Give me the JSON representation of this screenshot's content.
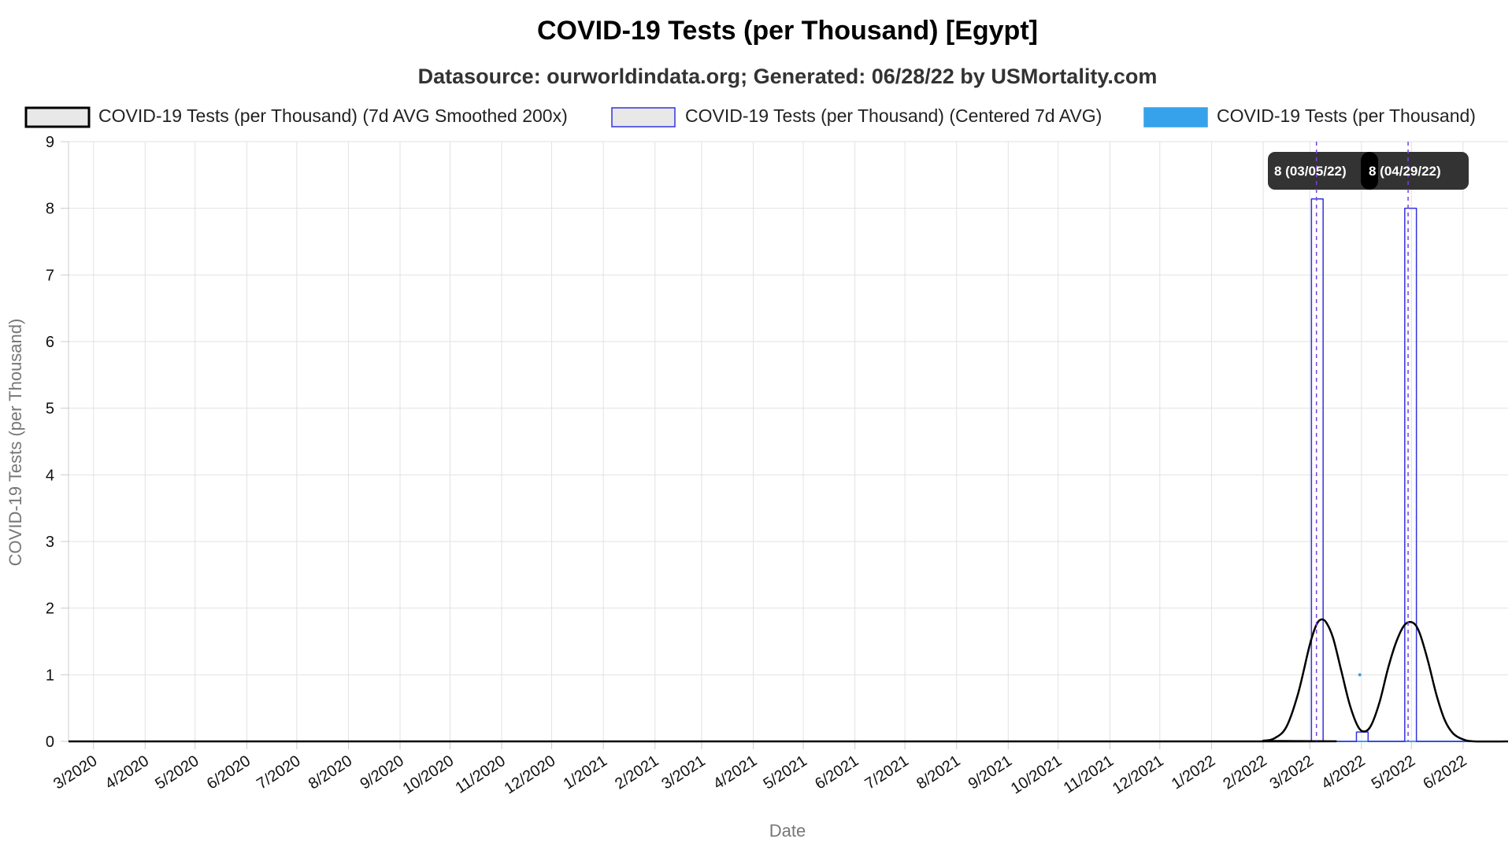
{
  "chart_data": {
    "type": "line",
    "title": "COVID-19 Tests (per Thousand) [Egypt]",
    "subtitle": "Datasource: ourworldindata.org; Generated: 06/28/22 by USMortality.com",
    "xlabel": "Date",
    "ylabel": "COVID-19 Tests (per Thousand)",
    "ylim": [
      0,
      9
    ],
    "yticks": [
      "0",
      "1",
      "2",
      "3",
      "4",
      "5",
      "6",
      "7",
      "8",
      "9"
    ],
    "xlim": [
      "2020-02-15",
      "2022-06-28"
    ],
    "xticks": [
      {
        "label": "3/2020",
        "date": "2020-03-01"
      },
      {
        "label": "4/2020",
        "date": "2020-04-01"
      },
      {
        "label": "5/2020",
        "date": "2020-05-01"
      },
      {
        "label": "6/2020",
        "date": "2020-06-01"
      },
      {
        "label": "7/2020",
        "date": "2020-07-01"
      },
      {
        "label": "8/2020",
        "date": "2020-08-01"
      },
      {
        "label": "9/2020",
        "date": "2020-09-01"
      },
      {
        "label": "10/2020",
        "date": "2020-10-01"
      },
      {
        "label": "11/2020",
        "date": "2020-11-01"
      },
      {
        "label": "12/2020",
        "date": "2020-12-01"
      },
      {
        "label": "1/2021",
        "date": "2021-01-01"
      },
      {
        "label": "2/2021",
        "date": "2021-02-01"
      },
      {
        "label": "3/2021",
        "date": "2021-03-01"
      },
      {
        "label": "4/2021",
        "date": "2021-04-01"
      },
      {
        "label": "5/2021",
        "date": "2021-05-01"
      },
      {
        "label": "6/2021",
        "date": "2021-06-01"
      },
      {
        "label": "7/2021",
        "date": "2021-07-01"
      },
      {
        "label": "8/2021",
        "date": "2021-08-01"
      },
      {
        "label": "9/2021",
        "date": "2021-09-01"
      },
      {
        "label": "10/2021",
        "date": "2021-10-01"
      },
      {
        "label": "11/2021",
        "date": "2021-11-01"
      },
      {
        "label": "12/2021",
        "date": "2021-12-01"
      },
      {
        "label": "1/2022",
        "date": "2022-01-01"
      },
      {
        "label": "2/2022",
        "date": "2022-02-01"
      },
      {
        "label": "3/2022",
        "date": "2022-03-01"
      },
      {
        "label": "4/2022",
        "date": "2022-04-01"
      },
      {
        "label": "5/2022",
        "date": "2022-05-01"
      },
      {
        "label": "6/2022",
        "date": "2022-06-01"
      }
    ],
    "grid": true,
    "legend_position": "top",
    "series": [
      {
        "name": "COVID-19 Tests (per Thousand) (7d AVG Smoothed 200x)",
        "color": "#000000",
        "legend_fill": "#e8e8e8",
        "style": "line",
        "points": [
          {
            "x": "2020-02-15",
            "y": 0
          },
          {
            "x": "2022-01-20",
            "y": 0
          },
          {
            "x": "2022-02-01",
            "y": 0.01
          },
          {
            "x": "2022-02-08",
            "y": 0.05
          },
          {
            "x": "2022-02-15",
            "y": 0.22
          },
          {
            "x": "2022-02-22",
            "y": 0.72
          },
          {
            "x": "2022-03-01",
            "y": 1.45
          },
          {
            "x": "2022-03-05",
            "y": 1.75
          },
          {
            "x": "2022-03-08",
            "y": 1.83
          },
          {
            "x": "2022-03-11",
            "y": 1.78
          },
          {
            "x": "2022-03-15",
            "y": 1.55
          },
          {
            "x": "2022-03-20",
            "y": 1.05
          },
          {
            "x": "2022-03-25",
            "y": 0.55
          },
          {
            "x": "2022-03-30",
            "y": 0.22
          },
          {
            "x": "2022-04-03",
            "y": 0.15
          },
          {
            "x": "2022-04-07",
            "y": 0.25
          },
          {
            "x": "2022-04-12",
            "y": 0.6
          },
          {
            "x": "2022-04-17",
            "y": 1.1
          },
          {
            "x": "2022-04-22",
            "y": 1.5
          },
          {
            "x": "2022-04-27",
            "y": 1.75
          },
          {
            "x": "2022-05-02",
            "y": 1.78
          },
          {
            "x": "2022-05-06",
            "y": 1.62
          },
          {
            "x": "2022-05-11",
            "y": 1.2
          },
          {
            "x": "2022-05-16",
            "y": 0.7
          },
          {
            "x": "2022-05-21",
            "y": 0.32
          },
          {
            "x": "2022-05-26",
            "y": 0.12
          },
          {
            "x": "2022-06-01",
            "y": 0.03
          },
          {
            "x": "2022-06-08",
            "y": 0
          },
          {
            "x": "2022-06-28",
            "y": 0
          }
        ]
      },
      {
        "name": "COVID-19 Tests (per Thousand) (Centered 7d AVG)",
        "color": "#3333dd",
        "legend_fill": "#e8e8e8",
        "style": "step",
        "points": [
          {
            "x": "2020-02-15",
            "y": 0
          },
          {
            "x": "2022-03-02",
            "y": 0
          },
          {
            "x": "2022-03-02",
            "y": 8.14
          },
          {
            "x": "2022-03-09",
            "y": 8.14
          },
          {
            "x": "2022-03-09",
            "y": 0
          },
          {
            "x": "2022-03-29",
            "y": 0
          },
          {
            "x": "2022-03-29",
            "y": 0.14
          },
          {
            "x": "2022-04-05",
            "y": 0.14
          },
          {
            "x": "2022-04-05",
            "y": 0
          },
          {
            "x": "2022-04-27",
            "y": 0
          },
          {
            "x": "2022-04-27",
            "y": 8.0
          },
          {
            "x": "2022-05-04",
            "y": 8.0
          },
          {
            "x": "2022-05-04",
            "y": 0
          },
          {
            "x": "2022-06-28",
            "y": 0
          }
        ]
      },
      {
        "name": "COVID-19 Tests (per Thousand)",
        "color": "#36a2eb",
        "legend_fill": "#36a2eb",
        "style": "line",
        "points": [
          {
            "x": "2020-02-15",
            "y": 0
          },
          {
            "x": "2022-06-28",
            "y": 0
          }
        ],
        "markers": [
          {
            "x": "2022-03-31",
            "y": 1
          }
        ]
      }
    ],
    "annotations": [
      {
        "date": "2022-03-05",
        "value": 8,
        "label": "8 (03/05/22)"
      },
      {
        "date": "2022-04-29",
        "value": 8,
        "label": "8 (04/29/22)"
      }
    ]
  }
}
